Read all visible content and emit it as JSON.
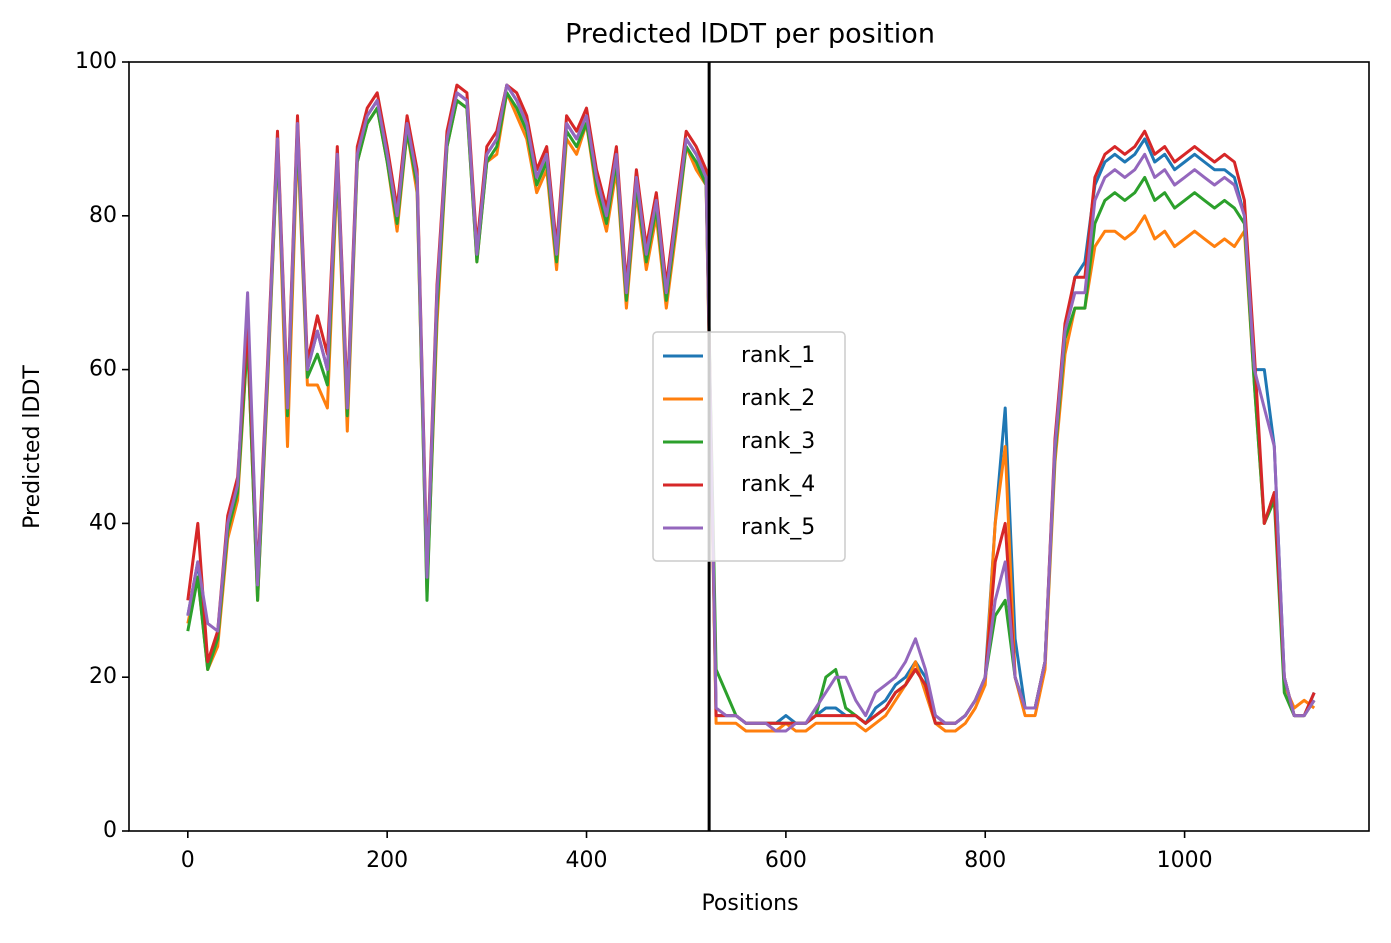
{
  "chart_data": {
    "type": "line",
    "title": "Predicted lDDT per position",
    "xlabel": "Positions",
    "ylabel": "Predicted lDDT",
    "x": [
      0,
      10,
      20,
      30,
      40,
      50,
      60,
      70,
      80,
      90,
      100,
      110,
      120,
      130,
      140,
      150,
      160,
      170,
      180,
      190,
      200,
      210,
      220,
      230,
      240,
      250,
      260,
      270,
      280,
      290,
      300,
      310,
      320,
      330,
      340,
      350,
      360,
      370,
      380,
      390,
      400,
      410,
      420,
      430,
      440,
      450,
      460,
      470,
      480,
      490,
      500,
      510,
      520,
      530,
      540,
      550,
      560,
      570,
      580,
      590,
      600,
      610,
      620,
      630,
      640,
      650,
      660,
      670,
      680,
      690,
      700,
      710,
      720,
      730,
      740,
      750,
      760,
      770,
      780,
      790,
      800,
      810,
      820,
      830,
      840,
      850,
      860,
      870,
      880,
      890,
      900,
      910,
      920,
      930,
      940,
      950,
      960,
      970,
      980,
      990,
      1000,
      1010,
      1020,
      1030,
      1040,
      1050,
      1060,
      1070,
      1080,
      1090,
      1100,
      1110,
      1120,
      1130
    ],
    "series": [
      {
        "name": "rank_1",
        "color": "#1f77b4",
        "values": [
          28,
          35,
          22,
          25,
          40,
          45,
          65,
          32,
          60,
          90,
          55,
          92,
          60,
          65,
          60,
          88,
          55,
          88,
          93,
          95,
          88,
          80,
          92,
          85,
          32,
          70,
          90,
          96,
          95,
          75,
          88,
          90,
          97,
          95,
          92,
          85,
          88,
          75,
          92,
          90,
          93,
          85,
          80,
          88,
          70,
          85,
          75,
          82,
          70,
          80,
          90,
          88,
          85,
          15,
          15,
          15,
          14,
          14,
          14,
          14,
          15,
          14,
          14,
          15,
          16,
          16,
          15,
          15,
          14,
          16,
          17,
          19,
          20,
          22,
          20,
          15,
          14,
          14,
          15,
          17,
          20,
          40,
          55,
          25,
          16,
          16,
          22,
          50,
          65,
          72,
          74,
          84,
          87,
          88,
          87,
          88,
          90,
          87,
          88,
          86,
          87,
          88,
          87,
          86,
          86,
          85,
          80,
          60,
          60,
          50,
          20,
          15,
          15,
          18
        ]
      },
      {
        "name": "rank_2",
        "color": "#ff7f0e",
        "values": [
          27,
          33,
          21,
          24,
          38,
          43,
          64,
          30,
          58,
          89,
          50,
          90,
          58,
          58,
          55,
          86,
          52,
          87,
          92,
          94,
          87,
          78,
          91,
          83,
          31,
          66,
          89,
          95,
          94,
          74,
          87,
          88,
          96,
          93,
          90,
          83,
          86,
          73,
          90,
          88,
          92,
          83,
          78,
          86,
          68,
          83,
          73,
          80,
          68,
          78,
          89,
          86,
          84,
          14,
          14,
          14,
          13,
          13,
          13,
          13,
          14,
          13,
          13,
          14,
          14,
          14,
          14,
          14,
          13,
          14,
          15,
          17,
          19,
          22,
          18,
          14,
          13,
          13,
          14,
          16,
          19,
          40,
          50,
          20,
          15,
          15,
          21,
          48,
          62,
          68,
          68,
          76,
          78,
          78,
          77,
          78,
          80,
          77,
          78,
          76,
          77,
          78,
          77,
          76,
          77,
          76,
          78,
          58,
          40,
          44,
          19,
          16,
          17,
          16
        ]
      },
      {
        "name": "rank_3",
        "color": "#2ca02c",
        "values": [
          26,
          33,
          21,
          25,
          39,
          44,
          64,
          30,
          59,
          89,
          54,
          91,
          59,
          62,
          58,
          87,
          54,
          87,
          92,
          94,
          87,
          79,
          91,
          84,
          30,
          68,
          89,
          95,
          94,
          74,
          87,
          89,
          96,
          94,
          91,
          84,
          87,
          74,
          91,
          89,
          92,
          84,
          79,
          87,
          69,
          84,
          74,
          81,
          69,
          79,
          89,
          87,
          84,
          21,
          18,
          15,
          14,
          14,
          14,
          14,
          14,
          14,
          14,
          15,
          20,
          21,
          16,
          15,
          14,
          15,
          16,
          18,
          19,
          21,
          19,
          14,
          14,
          14,
          15,
          17,
          20,
          28,
          30,
          20,
          16,
          16,
          22,
          49,
          64,
          68,
          68,
          79,
          82,
          83,
          82,
          83,
          85,
          82,
          83,
          81,
          82,
          83,
          82,
          81,
          82,
          81,
          79,
          58,
          40,
          43,
          18,
          15,
          15,
          17
        ]
      },
      {
        "name": "rank_4",
        "color": "#d62728",
        "values": [
          30,
          40,
          22,
          26,
          41,
          46,
          66,
          33,
          61,
          91,
          56,
          93,
          61,
          67,
          62,
          89,
          56,
          89,
          94,
          96,
          89,
          81,
          93,
          86,
          34,
          71,
          91,
          97,
          96,
          76,
          89,
          91,
          97,
          96,
          93,
          86,
          89,
          76,
          93,
          91,
          94,
          86,
          81,
          89,
          71,
          86,
          76,
          83,
          71,
          81,
          91,
          89,
          86,
          15,
          15,
          15,
          14,
          14,
          14,
          14,
          14,
          14,
          14,
          15,
          15,
          15,
          15,
          15,
          14,
          15,
          16,
          18,
          19,
          21,
          19,
          14,
          14,
          14,
          15,
          17,
          20,
          35,
          40,
          20,
          16,
          16,
          22,
          51,
          66,
          72,
          72,
          85,
          88,
          89,
          88,
          89,
          91,
          88,
          89,
          87,
          88,
          89,
          88,
          87,
          88,
          87,
          82,
          62,
          40,
          44,
          20,
          15,
          15,
          18
        ]
      },
      {
        "name": "rank_5",
        "color": "#9467bd",
        "values": [
          28,
          35,
          27,
          26,
          40,
          45,
          70,
          32,
          60,
          90,
          55,
          92,
          60,
          65,
          60,
          88,
          55,
          88,
          93,
          95,
          88,
          80,
          92,
          85,
          33,
          70,
          90,
          96,
          95,
          75,
          88,
          90,
          97,
          95,
          92,
          85,
          88,
          75,
          92,
          90,
          93,
          85,
          80,
          88,
          70,
          85,
          75,
          82,
          70,
          80,
          90,
          88,
          85,
          16,
          15,
          15,
          14,
          14,
          14,
          13,
          13,
          14,
          14,
          16,
          18,
          20,
          20,
          17,
          15,
          18,
          19,
          20,
          22,
          25,
          21,
          15,
          14,
          14,
          15,
          17,
          20,
          30,
          35,
          20,
          16,
          16,
          22,
          50,
          65,
          70,
          70,
          82,
          85,
          86,
          85,
          86,
          88,
          85,
          86,
          84,
          85,
          86,
          85,
          84,
          85,
          84,
          80,
          60,
          55,
          50,
          20,
          15,
          15,
          17
        ]
      }
    ],
    "vline": 523,
    "xlim": [
      -59,
      1185
    ],
    "ylim": [
      0,
      100
    ],
    "xticks": [
      0,
      200,
      400,
      600,
      800,
      1000
    ],
    "yticks": [
      0,
      20,
      40,
      60,
      80,
      100
    ],
    "legend": "center"
  }
}
